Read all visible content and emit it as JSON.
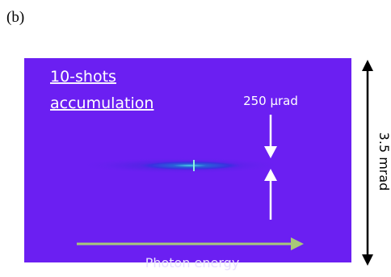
{
  "panel_label": "(b)",
  "image": {
    "caption_lines": [
      "10-shots",
      "accumulation"
    ],
    "gap_label": "250 µrad",
    "x_axis_label": "Photon energy",
    "y_extent_label": "3.5 mrad"
  }
}
